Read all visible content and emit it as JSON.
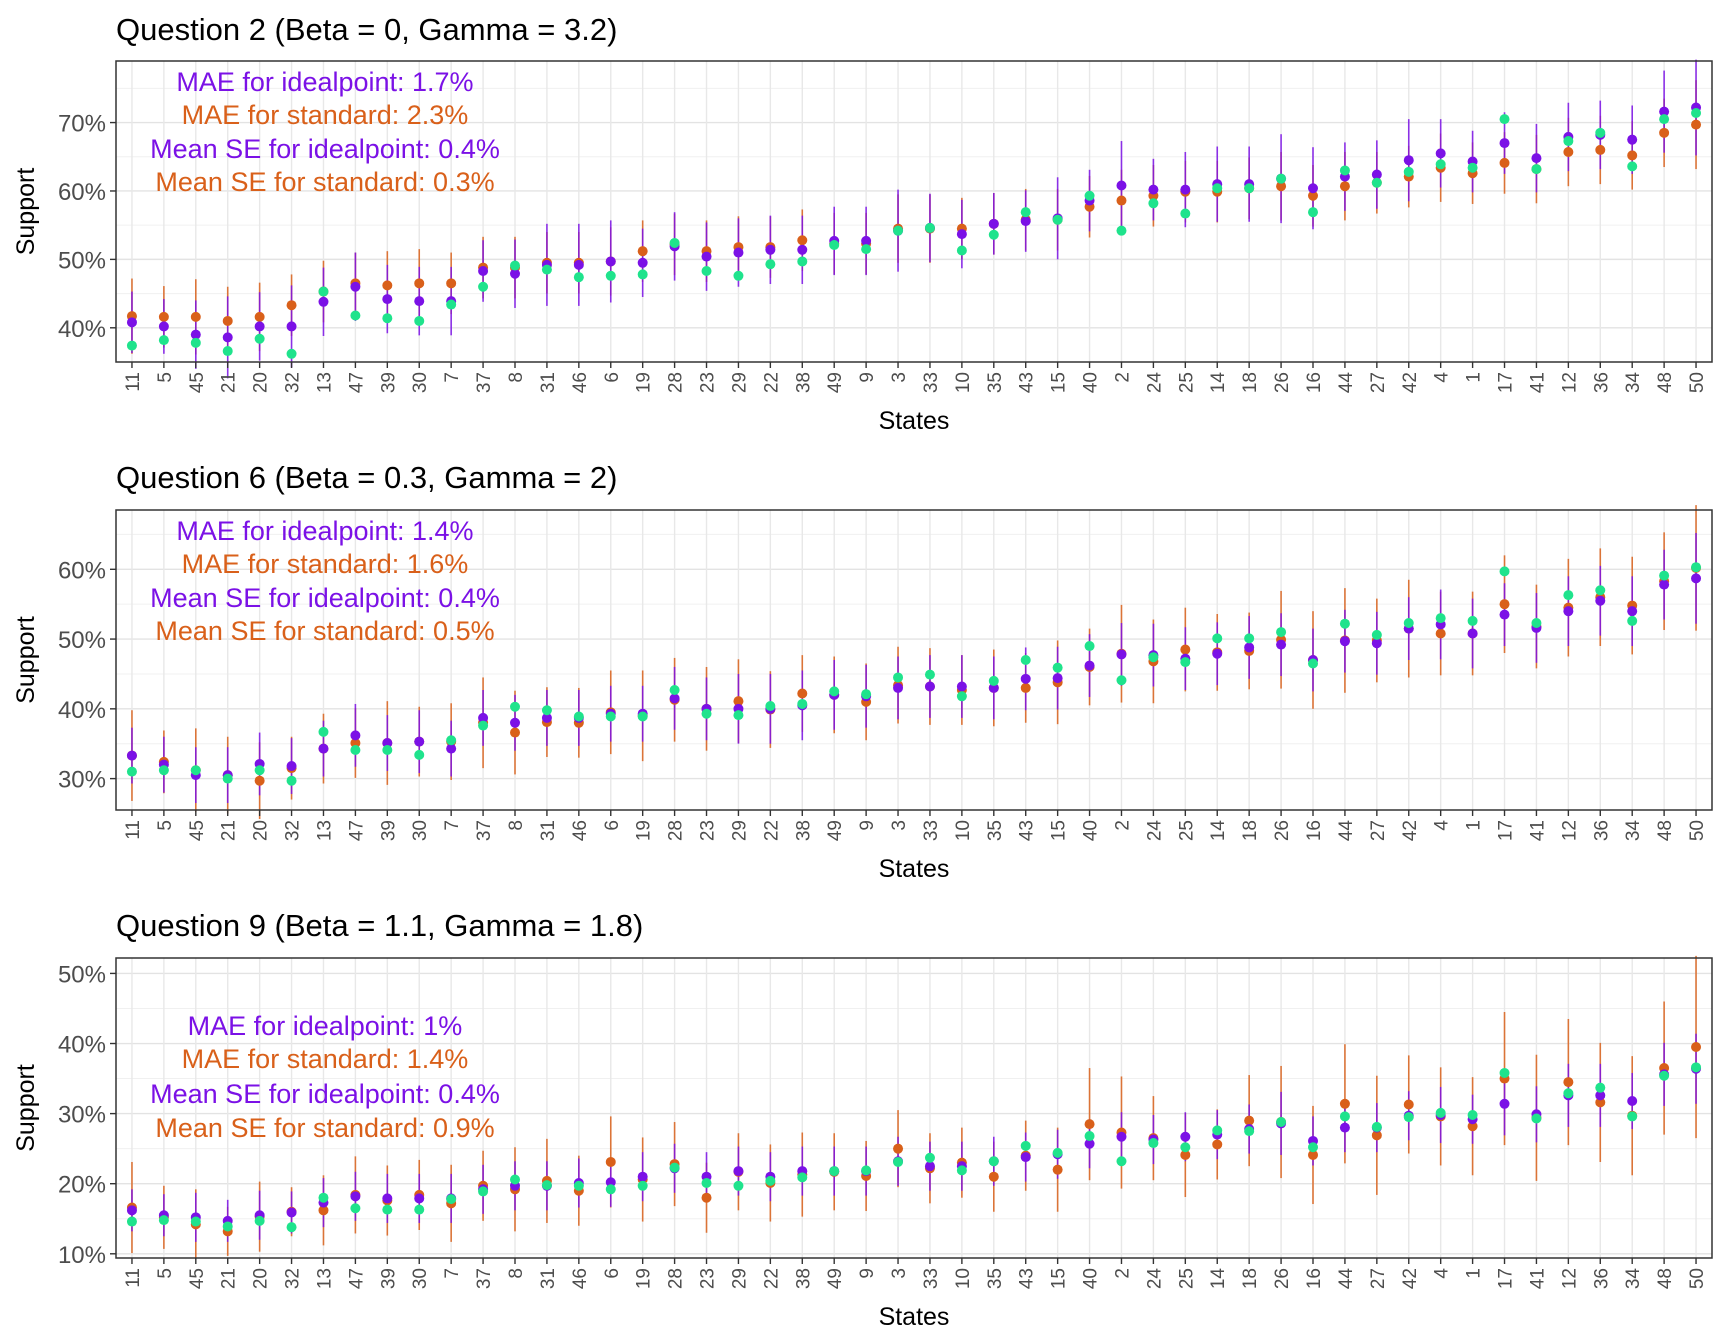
{
  "chart_data": [
    {
      "type": "scatter",
      "title": "Question 2 (Beta = 0, Gamma = 3.2)",
      "xlabel": "States",
      "ylabel": "Support",
      "ylim": [
        35,
        79
      ],
      "yticks": [
        "40%",
        "50%",
        "60%",
        "70%"
      ],
      "ytick_values": [
        40,
        50,
        60,
        70
      ],
      "categories": [
        "11",
        "5",
        "45",
        "21",
        "20",
        "32",
        "13",
        "47",
        "39",
        "30",
        "7",
        "37",
        "8",
        "31",
        "46",
        "6",
        "19",
        "28",
        "23",
        "29",
        "22",
        "38",
        "49",
        "9",
        "3",
        "33",
        "10",
        "35",
        "43",
        "15",
        "40",
        "2",
        "24",
        "25",
        "14",
        "18",
        "26",
        "16",
        "44",
        "27",
        "42",
        "4",
        "1",
        "17",
        "41",
        "12",
        "36",
        "34",
        "48",
        "50"
      ],
      "series": [
        {
          "color": "#d9601a",
          "values": [
            41.7,
            41.6,
            41.6,
            41.0,
            41.6,
            43.3,
            45.3,
            46.5,
            46.2,
            46.5,
            46.5,
            48.8,
            48.8,
            49.5,
            49.5,
            49.7,
            51.2,
            52.2,
            51.2,
            51.8,
            51.8,
            52.8,
            52.3,
            52.3,
            54.5,
            54.5,
            54.5,
            55.2,
            55.8,
            55.8,
            57.7,
            58.6,
            59.3,
            59.9,
            59.9,
            60.4,
            60.7,
            59.3,
            60.7,
            61.2,
            62.1,
            63.4,
            62.6,
            64.1,
            63.2,
            65.7,
            66.0,
            65.2,
            68.5,
            69.7
          ],
          "error": [
            5.5,
            4.5,
            5.5,
            5,
            5,
            4.5,
            4.5,
            4.5,
            5,
            5,
            4.5,
            4.5,
            4.5,
            4.5,
            4.5,
            5,
            4.5,
            4.5,
            4.5,
            4.5,
            4.5,
            4.5,
            4.5,
            4.5,
            5,
            5,
            4.5,
            4.5,
            4.5,
            4.5,
            4.5,
            4.5,
            4.5,
            4.5,
            4.5,
            4.5,
            5,
            4.5,
            5,
            4.5,
            4.5,
            5,
            4.5,
            4.5,
            5,
            5,
            5,
            5,
            5,
            6.5
          ]
        },
        {
          "color": "#7b11e6",
          "values": [
            40.8,
            40.2,
            39.0,
            38.6,
            40.2,
            40.2,
            43.8,
            46.0,
            44.2,
            43.9,
            43.9,
            48.3,
            47.9,
            49.2,
            49.2,
            49.7,
            49.5,
            51.9,
            50.4,
            51.0,
            51.4,
            51.4,
            52.7,
            52.7,
            54.2,
            54.6,
            53.7,
            55.2,
            55.6,
            56.0,
            58.6,
            60.8,
            60.2,
            60.2,
            61.0,
            61.0,
            61.8,
            60.4,
            62.1,
            62.4,
            64.5,
            65.5,
            64.3,
            67.0,
            64.8,
            67.9,
            68.2,
            67.5,
            71.6,
            72.2
          ],
          "error": [
            4.5,
            4,
            5,
            6,
            5,
            6,
            5,
            5,
            5,
            5,
            5,
            4.5,
            5,
            6,
            6,
            6,
            5,
            5,
            5,
            5,
            5,
            5,
            5,
            5,
            6,
            5,
            5,
            4.5,
            4.5,
            6,
            4.5,
            6.5,
            4.5,
            5.5,
            5.5,
            5.5,
            6.5,
            6,
            5,
            5,
            6,
            5,
            4.5,
            4.5,
            5,
            5,
            5,
            5,
            6,
            7
          ]
        },
        {
          "color": "#1fe38c",
          "values": [
            37.4,
            38.2,
            37.8,
            36.6,
            38.4,
            36.2,
            45.3,
            41.8,
            41.4,
            41.0,
            43.4,
            46.0,
            49.1,
            48.5,
            47.4,
            47.6,
            47.8,
            52.4,
            48.3,
            47.6,
            49.3,
            49.7,
            52.1,
            51.5,
            54.2,
            54.6,
            51.3,
            53.6,
            56.9,
            55.8,
            59.3,
            54.2,
            58.2,
            56.7,
            60.4,
            60.4,
            61.8,
            56.9,
            63.0,
            61.2,
            62.8,
            63.9,
            63.4,
            70.5,
            63.2,
            67.3,
            68.5,
            63.6,
            70.5,
            71.4
          ]
        }
      ],
      "annotations": [
        {
          "text": "MAE for idealpoint: 1.7%",
          "color": "#7b11e6"
        },
        {
          "text": "MAE for standard: 2.3%",
          "color": "#d9601a"
        },
        {
          "text": "Mean SE for idealpoint: 0.4%",
          "color": "#7b11e6"
        },
        {
          "text": "Mean SE for standard: 0.3%",
          "color": "#d9601a"
        }
      ],
      "grid": true
    },
    {
      "type": "scatter",
      "title": "Question 6 (Beta = 0.3, Gamma = 2)",
      "xlabel": "States",
      "ylabel": "Support",
      "ylim": [
        25.5,
        68.5
      ],
      "yticks": [
        "30%",
        "40%",
        "50%",
        "60%"
      ],
      "ytick_values": [
        30,
        40,
        50,
        60
      ],
      "categories": [
        "11",
        "5",
        "45",
        "21",
        "20",
        "32",
        "13",
        "47",
        "39",
        "30",
        "7",
        "37",
        "8",
        "31",
        "46",
        "6",
        "19",
        "28",
        "23",
        "29",
        "22",
        "38",
        "49",
        "9",
        "3",
        "33",
        "10",
        "35",
        "43",
        "15",
        "40",
        "2",
        "24",
        "25",
        "14",
        "18",
        "26",
        "16",
        "44",
        "27",
        "42",
        "4",
        "1",
        "17",
        "41",
        "12",
        "36",
        "34",
        "48",
        "50"
      ],
      "series": [
        {
          "color": "#d9601a",
          "values": [
            33.3,
            32.4,
            31.2,
            30.5,
            29.7,
            31.5,
            34.3,
            35.1,
            35.1,
            35.3,
            35.3,
            38.0,
            36.6,
            38.1,
            38.0,
            39.5,
            39.0,
            41.3,
            40.0,
            41.1,
            39.9,
            42.2,
            42.0,
            41.0,
            43.4,
            43.2,
            42.7,
            43.0,
            43.0,
            43.8,
            46.0,
            47.9,
            46.8,
            48.5,
            48.1,
            48.3,
            49.9,
            47.0,
            49.8,
            49.8,
            51.5,
            50.8,
            50.8,
            55.0,
            51.8,
            54.5,
            56.0,
            54.8,
            58.3,
            60.2
          ],
          "error": [
            6.5,
            4.5,
            6,
            5.5,
            5.5,
            4.5,
            5,
            5,
            6,
            5,
            5.5,
            6.5,
            6,
            5,
            5,
            6,
            6.5,
            6,
            6,
            6,
            5.5,
            5.5,
            5.5,
            5.5,
            5.5,
            5.5,
            5,
            5.5,
            5,
            6,
            5.5,
            7,
            6,
            6,
            5.5,
            5.5,
            7,
            7,
            7.5,
            6,
            7,
            6,
            6,
            7,
            6,
            7,
            7,
            7,
            7,
            9
          ]
        },
        {
          "color": "#7b11e6",
          "values": [
            33.3,
            32.0,
            30.5,
            30.5,
            32.1,
            31.8,
            34.3,
            36.2,
            35.1,
            35.3,
            34.3,
            38.7,
            38.0,
            38.7,
            38.7,
            39.3,
            39.3,
            41.5,
            40.0,
            40.0,
            40.0,
            40.5,
            42.0,
            41.8,
            43.0,
            43.2,
            43.2,
            43.0,
            44.3,
            44.4,
            46.2,
            47.8,
            47.7,
            47.2,
            47.9,
            48.8,
            49.2,
            47.0,
            49.7,
            49.4,
            51.5,
            52.1,
            50.8,
            53.5,
            51.6,
            54.0,
            55.5,
            54.0,
            57.8,
            58.7
          ],
          "error": [
            4,
            4,
            4,
            4,
            4.5,
            4,
            4,
            4.5,
            4,
            4.5,
            4,
            4,
            4,
            4,
            4,
            4,
            4,
            4.5,
            4.5,
            5,
            5,
            5,
            5,
            4.5,
            4.5,
            4.5,
            4.5,
            4.5,
            4.5,
            4.5,
            4.5,
            4.5,
            4.5,
            4.5,
            4.5,
            4.5,
            4.5,
            4.5,
            4.5,
            4.5,
            4.5,
            5,
            5,
            4.5,
            5,
            5,
            5,
            5,
            5,
            6.5
          ]
        },
        {
          "color": "#1fe38c",
          "values": [
            31.0,
            31.2,
            31.2,
            30.0,
            31.2,
            29.7,
            36.7,
            34.1,
            34.1,
            33.4,
            35.5,
            37.6,
            40.3,
            39.8,
            38.9,
            38.9,
            38.9,
            42.7,
            39.3,
            39.1,
            40.4,
            40.7,
            42.5,
            42.1,
            44.5,
            44.9,
            41.8,
            44.0,
            47.0,
            45.9,
            49.0,
            44.1,
            47.4,
            46.7,
            50.1,
            50.1,
            51.0,
            46.5,
            52.2,
            50.6,
            52.3,
            53.0,
            52.6,
            59.7,
            52.3,
            56.3,
            57.0,
            52.6,
            59.1,
            60.3
          ]
        }
      ],
      "annotations": [
        {
          "text": "MAE for idealpoint: 1.4%",
          "color": "#7b11e6"
        },
        {
          "text": "MAE for standard: 1.6%",
          "color": "#d9601a"
        },
        {
          "text": "Mean SE for idealpoint: 0.4%",
          "color": "#7b11e6"
        },
        {
          "text": "Mean SE for standard: 0.5%",
          "color": "#d9601a"
        }
      ],
      "grid": true
    },
    {
      "type": "scatter",
      "title": "Question 9 (Beta = 1.1, Gamma = 1.8)",
      "xlabel": "States",
      "ylabel": "Support",
      "ylim": [
        9.4,
        52.2
      ],
      "yticks": [
        "10%",
        "20%",
        "30%",
        "40%",
        "50%"
      ],
      "ytick_values": [
        10,
        20,
        30,
        40,
        50
      ],
      "categories": [
        "11",
        "5",
        "45",
        "21",
        "20",
        "32",
        "13",
        "47",
        "39",
        "30",
        "7",
        "37",
        "8",
        "31",
        "46",
        "6",
        "19",
        "28",
        "23",
        "29",
        "22",
        "38",
        "49",
        "9",
        "3",
        "33",
        "10",
        "35",
        "43",
        "15",
        "40",
        "2",
        "24",
        "25",
        "14",
        "18",
        "26",
        "16",
        "44",
        "27",
        "42",
        "4",
        "1",
        "17",
        "41",
        "12",
        "36",
        "34",
        "48",
        "50"
      ],
      "series": [
        {
          "color": "#d9601a",
          "values": [
            16.6,
            15.2,
            14.2,
            13.2,
            15.3,
            16.0,
            16.2,
            18.4,
            17.6,
            18.4,
            17.2,
            19.7,
            19.2,
            20.4,
            19.0,
            23.1,
            20.6,
            22.8,
            18.0,
            21.7,
            20.1,
            21.3,
            21.7,
            21.1,
            25.0,
            22.2,
            23.0,
            21.0,
            24.0,
            22.0,
            28.5,
            27.3,
            26.5,
            24.1,
            25.6,
            29.0,
            28.8,
            24.1,
            31.4,
            26.9,
            31.3,
            29.6,
            28.2,
            35.0,
            29.4,
            34.5,
            31.6,
            29.7,
            36.5,
            39.5
          ],
          "error": [
            6.5,
            4.5,
            5,
            3.5,
            5,
            3.5,
            5,
            5.5,
            5,
            5,
            5.5,
            5,
            6,
            6,
            5,
            6.5,
            6,
            6,
            5,
            5.5,
            5.5,
            6,
            5.5,
            5,
            5.5,
            5,
            5,
            5,
            5,
            6,
            8,
            8,
            6,
            6,
            5,
            6.5,
            8,
            7,
            8.5,
            8.5,
            7,
            7,
            7,
            9.5,
            9,
            9,
            8.5,
            8.5,
            9.5,
            13
          ]
        },
        {
          "color": "#7b11e6",
          "values": [
            16.2,
            15.5,
            15.2,
            14.7,
            15.5,
            15.9,
            17.3,
            18.2,
            17.9,
            17.9,
            17.9,
            19.2,
            19.7,
            19.7,
            20.1,
            20.2,
            21.0,
            22.2,
            21.0,
            21.8,
            21.0,
            21.8,
            21.8,
            21.8,
            23.2,
            22.5,
            22.5,
            23.2,
            23.8,
            24.2,
            25.7,
            26.7,
            26.3,
            26.7,
            27.0,
            27.8,
            28.6,
            26.1,
            28.0,
            28.0,
            29.7,
            29.8,
            29.2,
            31.4,
            29.9,
            32.6,
            32.6,
            31.8,
            35.6,
            36.4
          ],
          "error": [
            3,
            3,
            3.5,
            3,
            3.5,
            3,
            3.5,
            3.5,
            3.5,
            3.5,
            3.5,
            3.5,
            3.5,
            3.5,
            3.5,
            3.5,
            3.5,
            3.5,
            3.5,
            3.5,
            3.5,
            3.5,
            3.5,
            3.5,
            3.5,
            3.5,
            3.5,
            3.5,
            3.5,
            3.5,
            3.5,
            3.5,
            3.5,
            3.5,
            3.5,
            3.5,
            4.5,
            3.5,
            3.5,
            3.5,
            3.5,
            4,
            3.5,
            4.5,
            4,
            4.5,
            4.5,
            4,
            4.5,
            5
          ]
        },
        {
          "color": "#1fe38c",
          "values": [
            14.6,
            14.8,
            14.6,
            13.9,
            14.7,
            13.8,
            18.0,
            16.5,
            16.3,
            16.3,
            17.8,
            18.9,
            20.6,
            19.8,
            19.7,
            19.2,
            19.7,
            22.3,
            20.1,
            19.7,
            20.4,
            20.9,
            21.8,
            21.9,
            23.1,
            23.7,
            21.9,
            23.2,
            25.4,
            24.4,
            26.8,
            23.2,
            25.8,
            25.2,
            27.6,
            27.5,
            28.8,
            25.2,
            29.6,
            28.1,
            29.5,
            30.1,
            29.8,
            35.8,
            29.3,
            32.9,
            33.7,
            29.6,
            35.4,
            36.6
          ]
        }
      ],
      "annotations": [
        {
          "text": "MAE for idealpoint: 1%",
          "color": "#7b11e6"
        },
        {
          "text": "MAE for standard: 1.4%",
          "color": "#d9601a"
        },
        {
          "text": "Mean SE for idealpoint: 0.4%",
          "color": "#7b11e6"
        },
        {
          "text": "Mean SE for standard: 0.9%",
          "color": "#d9601a"
        }
      ],
      "grid": true
    }
  ]
}
